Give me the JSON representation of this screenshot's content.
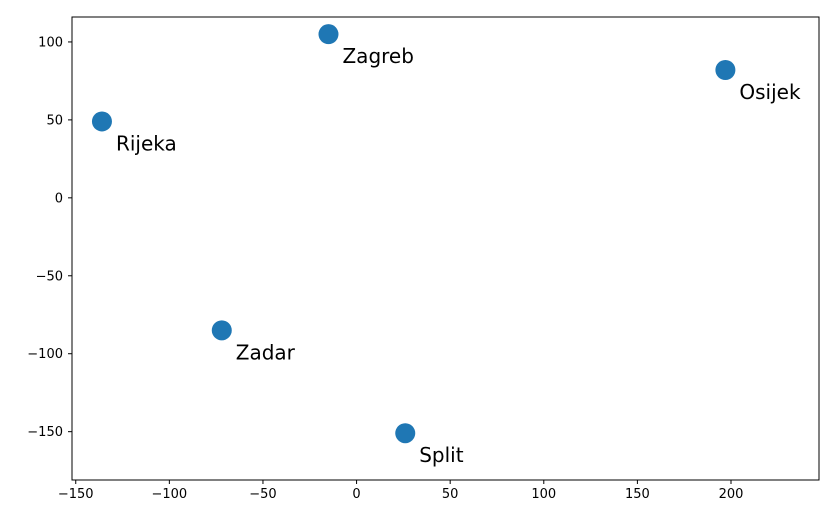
{
  "chart_data": {
    "type": "scatter",
    "title": "",
    "xlabel": "",
    "ylabel": "",
    "xlim": [
      -152,
      247
    ],
    "ylim": [
      -181,
      116
    ],
    "xticks": [
      -150,
      -100,
      -50,
      0,
      50,
      100,
      150,
      200
    ],
    "yticks": [
      -150,
      -100,
      -50,
      0,
      50,
      100
    ],
    "grid": false,
    "marker_color": "#1f77b4",
    "points": [
      {
        "label": "Zagreb",
        "x": -15,
        "y": 105
      },
      {
        "label": "Osijek",
        "x": 197,
        "y": 82
      },
      {
        "label": "Rijeka",
        "x": -136,
        "y": 49
      },
      {
        "label": "Zadar",
        "x": -72,
        "y": -85
      },
      {
        "label": "Split",
        "x": 26,
        "y": -151
      }
    ]
  }
}
